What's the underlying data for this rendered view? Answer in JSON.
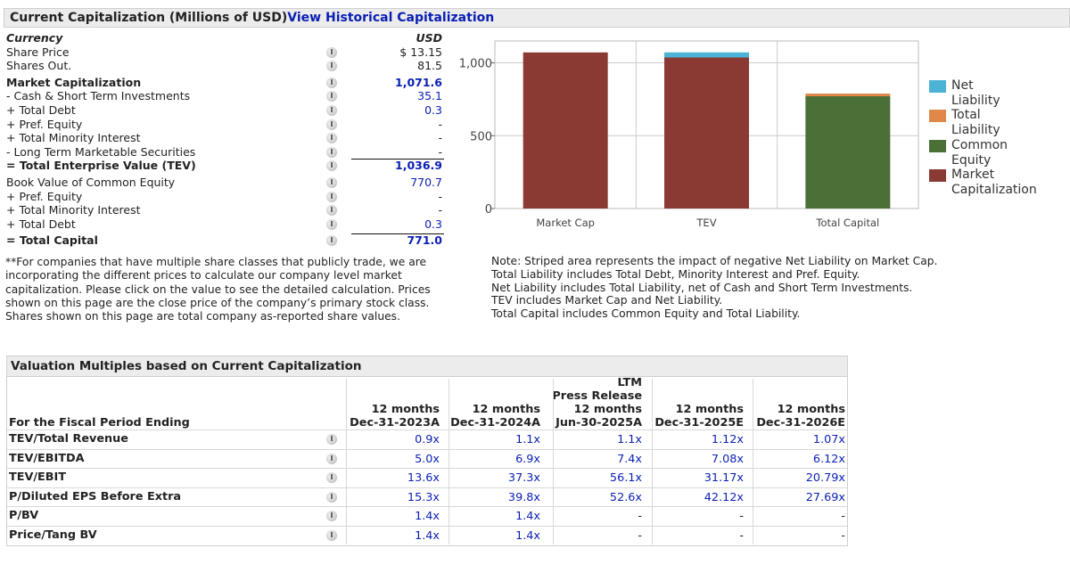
{
  "capitalization": {
    "title": "Current Capitalization (Millions of USD)",
    "history_link": "View Historical Capitalization",
    "rows": [
      {
        "label": "Currency",
        "value": "USD",
        "style": "italic-bold"
      },
      {
        "label": "Share Price",
        "value": "$ 13.15",
        "icon": true
      },
      {
        "label": "Shares Out.",
        "value": "81.5",
        "icon": true
      },
      {
        "label": "Market Capitalization",
        "value": "1,071.6",
        "icon": true,
        "bold": true,
        "link": true
      },
      {
        "label": "- Cash & Short Term Investments",
        "value": "35.1",
        "icon": true,
        "link": true
      },
      {
        "label": "+ Total Debt",
        "value": "0.3",
        "icon": true,
        "link": true
      },
      {
        "label": "+ Pref. Equity",
        "value": "-",
        "icon": true
      },
      {
        "label": "+ Total Minority Interest",
        "value": "-",
        "icon": true
      },
      {
        "label": "- Long Term Marketable Securities",
        "value": "-",
        "icon": true
      },
      {
        "label": "= Total Enterprise Value (TEV)",
        "value": "1,036.9",
        "icon": true,
        "bold": true,
        "link": true,
        "line": true
      },
      {
        "label": "Book Value of Common Equity",
        "value": "770.7",
        "icon": true,
        "link": true
      },
      {
        "label": "+ Pref. Equity",
        "value": "-",
        "icon": true
      },
      {
        "label": "+ Total Minority Interest",
        "value": "-",
        "icon": true
      },
      {
        "label": "+ Total Debt",
        "value": "0.3",
        "icon": true,
        "link": true
      },
      {
        "label": "= Total Capital",
        "value": "771.0",
        "icon": true,
        "bold": true,
        "link": true,
        "line": true
      }
    ],
    "footnote": "**For companies that have multiple share classes that publicly trade, we are incorporating the different prices to calculate our company level market capitalization. Please click on the value to see the detailed calculation. Prices shown on this page are the close price of the company’s primary stock class. Shares shown on this page are total company as-reported share values."
  },
  "chart_data": {
    "type": "bar",
    "stacked": true,
    "categories": [
      "Market Cap",
      "TEV",
      "Total Capital"
    ],
    "ylim": [
      0,
      1150
    ],
    "yticks": [
      0,
      500,
      "1,000"
    ],
    "grid": true,
    "legend": "right",
    "series": [
      {
        "name": "Market Capitalization",
        "color": "#8b3a33",
        "values": [
          1071.6,
          1036.9,
          0
        ]
      },
      {
        "name": "Common Equity",
        "color": "#4a7038",
        "values": [
          0,
          0,
          770.7
        ]
      },
      {
        "name": "Total Liability",
        "color": "#e0874a",
        "values": [
          0,
          0,
          0.3
        ]
      },
      {
        "name": "Net Liability",
        "color": "#4cb3d6",
        "values": [
          0,
          34.8,
          0
        ]
      }
    ],
    "legend_entries": [
      "Net Liability",
      "Total Liability",
      "Common Equity",
      "Market Capitalization"
    ]
  },
  "notes": [
    "Note: Striped area represents the impact of negative Net Liability on Market Cap.",
    "Total Liability includes Total Debt, Minority Interest and Pref. Equity.",
    "Net Liability includes Total Liability, net of Cash and Short Term Investments.",
    "TEV includes Market Cap and Net Liability.",
    "Total Capital includes Common Equity and Total Liability."
  ],
  "valuation": {
    "title": "Valuation Multiples based on Current Capitalization",
    "period_label": "For the Fiscal Period Ending",
    "columns": [
      [
        "12 months",
        "Dec-31-2023A"
      ],
      [
        "12 months",
        "Dec-31-2024A"
      ],
      [
        "LTM",
        "Press Release",
        "12 months",
        "Jun-30-2025A"
      ],
      [
        "12 months",
        "Dec-31-2025E"
      ],
      [
        "12 months",
        "Dec-31-2026E"
      ]
    ],
    "rows": [
      {
        "label": "TEV/Total Revenue",
        "values": [
          "0.9x",
          "1.1x",
          "1.1x",
          "1.12x",
          "1.07x"
        ]
      },
      {
        "label": "TEV/EBITDA",
        "values": [
          "5.0x",
          "6.9x",
          "7.4x",
          "7.08x",
          "6.12x"
        ]
      },
      {
        "label": "TEV/EBIT",
        "values": [
          "13.6x",
          "37.3x",
          "56.1x",
          "31.17x",
          "20.79x"
        ]
      },
      {
        "label": "P/Diluted EPS Before Extra",
        "values": [
          "15.3x",
          "39.8x",
          "52.6x",
          "42.12x",
          "27.69x"
        ]
      },
      {
        "label": "P/BV",
        "values": [
          "1.4x",
          "1.4x",
          "-",
          "-",
          "-"
        ]
      },
      {
        "label": "Price/Tang BV",
        "values": [
          "1.4x",
          "1.4x",
          "-",
          "-",
          "-"
        ]
      }
    ]
  }
}
